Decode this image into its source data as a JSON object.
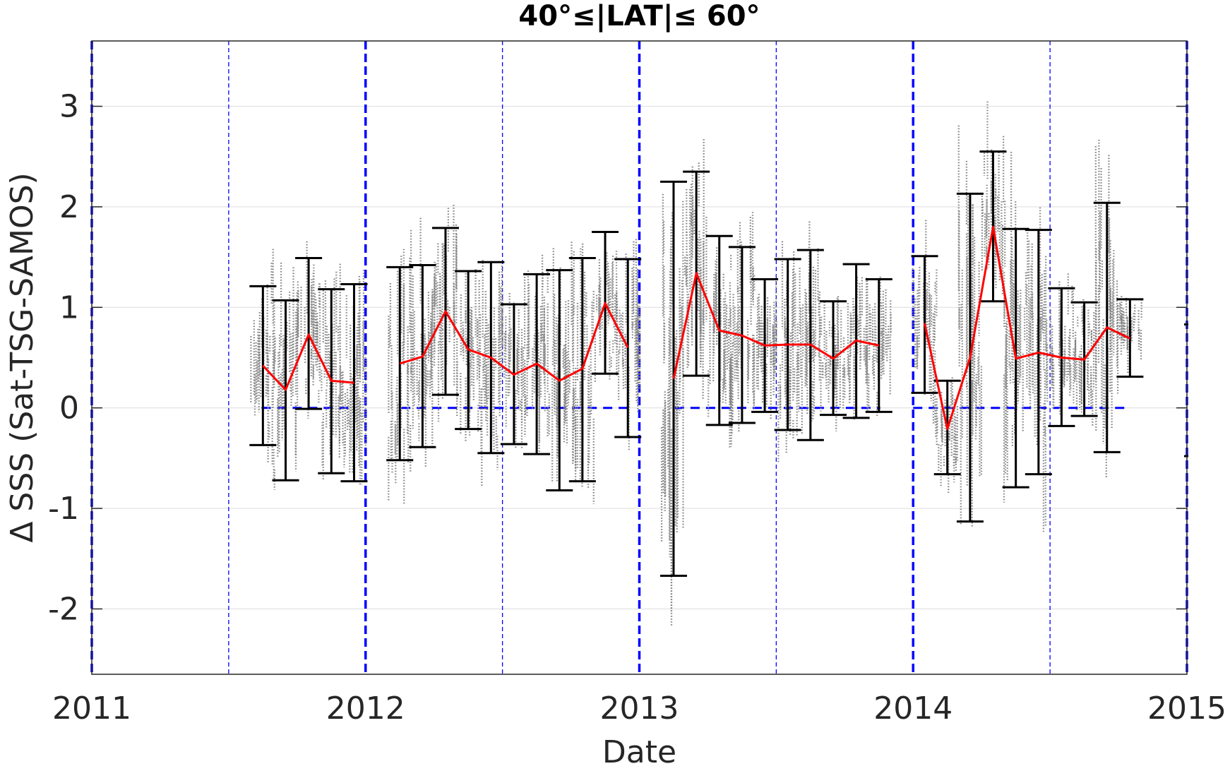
{
  "chart_data": {
    "type": "scatter",
    "title": "40°≤|LAT|≤ 60°",
    "xlabel": "Date",
    "ylabel": "Δ SSS (Sat-TSG-SAMOS)",
    "xlim": [
      2011,
      2015
    ],
    "ylim": [
      -2.65,
      3.65
    ],
    "x_ticks": [
      "2011",
      "2012",
      "2013",
      "2014",
      "2015"
    ],
    "y_ticks": [
      "-2",
      "-1",
      "0",
      "1",
      "2",
      "3"
    ],
    "y_tick_values": [
      -2,
      -1,
      0,
      1,
      2,
      3
    ],
    "grid": "horizontal",
    "colors": {
      "scatter": "#808080",
      "mean": "#ff0000",
      "errorbar": "#000000",
      "reference": "#0000ff",
      "grid": "#e0e0e0"
    },
    "year_boundaries": [
      2011,
      2012,
      2013,
      2014,
      2015
    ],
    "half_year_lines": [
      2011.5,
      2012.5,
      2013.5,
      2014.5
    ],
    "zero_line_segments": [
      [
        2011.62,
        2011.96
      ],
      [
        2012.13,
        2012.96
      ],
      [
        2013.13,
        2013.88
      ],
      [
        2014.0,
        2014.79
      ]
    ],
    "monthly_segments": [
      {
        "x": [
          2011.625,
          2011.708,
          2011.792,
          2011.875,
          2011.958
        ],
        "mean": [
          0.42,
          0.18,
          0.73,
          0.27,
          0.25
        ],
        "low": [
          -0.37,
          -0.72,
          -0.01,
          -0.65,
          -0.73
        ],
        "high": [
          1.21,
          1.07,
          1.49,
          1.18,
          1.23
        ]
      },
      {
        "x": [
          2012.125,
          2012.208,
          2012.292,
          2012.375,
          2012.458,
          2012.542,
          2012.625,
          2012.708,
          2012.792,
          2012.875,
          2012.958
        ],
        "mean": [
          0.44,
          0.51,
          0.96,
          0.58,
          0.5,
          0.33,
          0.44,
          0.27,
          0.39,
          1.04,
          0.6
        ],
        "low": [
          -0.52,
          -0.39,
          0.13,
          -0.21,
          -0.45,
          -0.36,
          -0.46,
          -0.82,
          -0.73,
          0.34,
          -0.29
        ],
        "high": [
          1.4,
          1.42,
          1.79,
          1.36,
          1.45,
          1.03,
          1.33,
          1.37,
          1.49,
          1.75,
          1.48
        ]
      },
      {
        "x": [
          2013.125,
          2013.208,
          2013.292,
          2013.375,
          2013.458,
          2013.542,
          2013.625,
          2013.708,
          2013.792,
          2013.875
        ],
        "mean": [
          0.29,
          1.34,
          0.77,
          0.72,
          0.62,
          0.63,
          0.63,
          0.49,
          0.67,
          0.62
        ],
        "low": [
          -1.67,
          0.32,
          -0.17,
          -0.15,
          -0.04,
          -0.22,
          -0.32,
          -0.07,
          -0.1,
          -0.04
        ],
        "high": [
          2.25,
          2.35,
          1.71,
          1.6,
          1.28,
          1.48,
          1.57,
          1.06,
          1.43,
          1.28
        ]
      },
      {
        "x": [
          2014.042,
          2014.125,
          2014.208,
          2014.292,
          2014.375,
          2014.458,
          2014.542,
          2014.625,
          2014.708,
          2014.792
        ],
        "mean": [
          0.84,
          -0.21,
          0.5,
          1.8,
          0.49,
          0.55,
          0.5,
          0.48,
          0.8,
          0.69
        ],
        "low": [
          0.15,
          -0.66,
          -1.13,
          1.06,
          -0.79,
          -0.66,
          -0.18,
          -0.08,
          -0.44,
          0.31
        ],
        "high": [
          1.51,
          0.27,
          2.13,
          2.55,
          1.78,
          1.77,
          1.19,
          1.05,
          2.04,
          1.08
        ]
      }
    ]
  }
}
